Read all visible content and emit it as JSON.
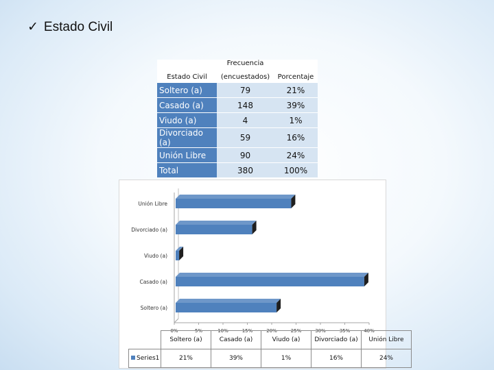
{
  "heading": {
    "check": "✓",
    "text": "Estado Civil"
  },
  "table": {
    "headers": {
      "col1": "Estado Civil",
      "col2_line1": "Frecuencia",
      "col2_line2": "(encuestados)",
      "col3": "Porcentaje"
    },
    "rows": [
      {
        "label": "Soltero (a)",
        "freq": "79",
        "pct": "21%"
      },
      {
        "label": "Casado (a)",
        "freq": "148",
        "pct": "39%"
      },
      {
        "label": "Viudo (a)",
        "freq": "4",
        "pct": "1%"
      },
      {
        "label": "Divorciado (a)",
        "freq": "59",
        "pct": "16%"
      },
      {
        "label": "Unión Libre",
        "freq": "90",
        "pct": "24%"
      },
      {
        "label": "Total",
        "freq": "380",
        "pct": "100%"
      }
    ]
  },
  "chart_data": {
    "type": "bar",
    "orientation": "horizontal",
    "categories": [
      "Soltero (a)",
      "Casado (a)",
      "Viudo (a)",
      "Divorciado (a)",
      "Unión Libre"
    ],
    "series": [
      {
        "name": "Series1",
        "values": [
          0.21,
          0.39,
          0.01,
          0.16,
          0.24
        ],
        "labels": [
          "21%",
          "39%",
          "1%",
          "16%",
          "24%"
        ]
      }
    ],
    "xlim": [
      0,
      0.4
    ],
    "x_ticks": [
      0,
      0.05,
      0.1,
      0.15,
      0.2,
      0.25,
      0.3,
      0.35,
      0.4
    ],
    "x_tick_labels": [
      "0%",
      "5%",
      "10%",
      "15%",
      "20%",
      "25%",
      "30%",
      "35%",
      "40%"
    ],
    "bar_color": "#4f81bd",
    "style": "3d",
    "data_table": true
  }
}
